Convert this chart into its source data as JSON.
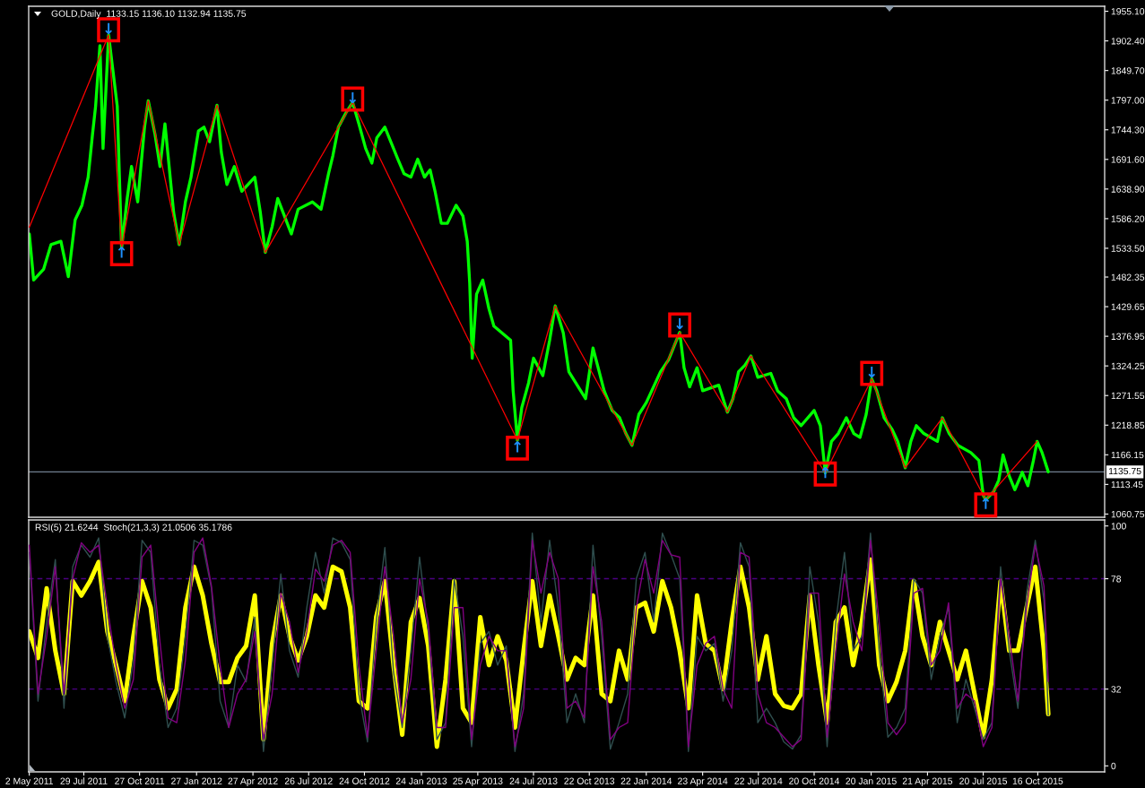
{
  "chart_data": [
    {
      "type": "line",
      "title": "GOLD,Daily  1133.15 1136.10 1132.94 1135.75",
      "xlim": [
        "2011-05-01",
        "2016-02-01"
      ],
      "ylim": [
        1055,
        1964
      ],
      "yticks": [
        {
          "value": 1955.1,
          "label": "1955.10"
        },
        {
          "value": 1902.4,
          "label": "1902.40"
        },
        {
          "value": 1849.7,
          "label": "1849.70"
        },
        {
          "value": 1797.0,
          "label": "1797.00"
        },
        {
          "value": 1744.3,
          "label": "1744.30"
        },
        {
          "value": 1691.6,
          "label": "1691.60"
        },
        {
          "value": 1638.9,
          "label": "1638.90"
        },
        {
          "value": 1586.2,
          "label": "1586.20"
        },
        {
          "value": 1533.5,
          "label": "1533.50"
        },
        1482.35,
        1429.65,
        1376.95,
        1324.25,
        1271.55,
        1218.85,
        1166.15,
        1113.45,
        1060.75
      ],
      "tick_labels": "y",
      "series": [
        {
          "color": "#00ff00",
          "x": [
            "2011-05-02",
            "2011-05-09",
            "2011-05-25",
            "2011-06-06",
            "2011-06-22",
            "2011-07-04",
            "2011-07-15",
            "2011-07-26",
            "2011-08-05",
            "2011-08-12",
            "2011-08-17",
            "2011-08-24",
            "2011-08-29",
            "2011-09-07",
            "2011-09-21",
            "2011-09-28",
            "2011-10-07",
            "2011-10-14",
            "2011-10-24",
            "2011-11-04",
            "2011-11-10",
            "2011-11-21",
            "2011-11-29",
            "2011-12-07",
            "2011-12-21",
            "2011-12-30",
            "2012-01-09",
            "2012-01-18",
            "2012-01-30",
            "2012-02-08",
            "2012-02-17",
            "2012-02-29",
            "2012-03-07",
            "2012-03-16",
            "2012-03-28",
            "2012-04-09",
            "2012-04-30",
            "2012-05-09",
            "2012-05-17",
            "2012-05-28",
            "2012-06-06",
            "2012-06-28",
            "2012-07-09",
            "2012-08-01",
            "2012-08-15",
            "2012-08-27",
            "2012-09-03",
            "2012-09-12",
            "2012-09-24",
            "2012-10-05",
            "2012-10-15",
            "2012-10-26",
            "2012-11-05",
            "2012-11-13",
            "2012-11-26",
            "2012-12-17",
            "2012-12-27",
            "2013-01-07",
            "2013-01-18",
            "2013-01-29",
            "2013-02-07",
            "2013-02-15",
            "2013-02-25",
            "2013-03-07",
            "2013-03-21",
            "2013-04-01",
            "2013-04-08",
            "2013-04-12",
            "2013-04-16",
            "2013-04-23",
            "2013-05-03",
            "2013-05-13",
            "2013-05-21",
            "2013-06-17",
            "2013-06-21",
            "2013-06-28",
            "2013-07-05",
            "2013-07-16",
            "2013-07-24",
            "2013-08-08",
            "2013-08-19",
            "2013-08-28",
            "2013-09-10",
            "2013-09-19",
            "2013-10-16",
            "2013-10-28",
            "2013-11-07",
            "2013-11-15",
            "2013-11-28",
            "2013-12-10",
            "2013-12-20",
            "2013-12-30",
            "2014-01-10",
            "2014-01-22",
            "2014-02-14",
            "2014-02-27",
            "2014-03-17",
            "2014-03-24",
            "2014-04-02",
            "2014-04-14",
            "2014-04-23",
            "2014-05-19",
            "2014-06-02",
            "2014-06-11",
            "2014-06-20",
            "2014-06-30",
            "2014-07-10",
            "2014-07-21",
            "2014-08-11",
            "2014-08-22",
            "2014-09-05",
            "2014-09-17",
            "2014-09-29",
            "2014-10-20",
            "2014-10-30",
            "2014-11-07",
            "2014-11-17",
            "2014-11-28",
            "2014-12-11",
            "2014-12-23",
            "2015-01-02",
            "2015-01-12",
            "2015-01-21",
            "2015-01-29",
            "2015-02-10",
            "2015-02-23",
            "2015-03-04",
            "2015-03-16",
            "2015-03-25",
            "2015-04-03",
            "2015-04-15",
            "2015-05-07",
            "2015-05-15",
            "2015-05-26",
            "2015-06-09",
            "2015-06-30",
            "2015-07-13",
            "2015-07-20",
            "2015-07-24",
            "2015-08-06",
            "2015-08-14",
            "2015-08-21",
            "2015-08-31",
            "2015-09-09",
            "2015-09-21",
            "2015-09-30",
            "2015-10-09",
            "2015-10-15",
            "2015-10-23",
            "2015-11-02"
          ],
          "values": [
            1559,
            1477,
            1496,
            1540,
            1546,
            1483,
            1584,
            1610,
            1660,
            1736,
            1786,
            1894,
            1711,
            1913,
            1786,
            1534,
            1622,
            1679,
            1616,
            1749,
            1796,
            1736,
            1679,
            1755,
            1597,
            1540,
            1616,
            1660,
            1742,
            1749,
            1723,
            1788,
            1704,
            1647,
            1679,
            1635,
            1660,
            1597,
            1526,
            1572,
            1622,
            1559,
            1603,
            1616,
            1603,
            1666,
            1698,
            1749,
            1774,
            1793,
            1755,
            1711,
            1685,
            1730,
            1749,
            1692,
            1666,
            1660,
            1692,
            1660,
            1673,
            1635,
            1578,
            1578,
            1610,
            1591,
            1546,
            1471,
            1338,
            1452,
            1477,
            1426,
            1395,
            1370,
            1281,
            1192,
            1250,
            1294,
            1338,
            1307,
            1370,
            1431,
            1383,
            1314,
            1266,
            1356,
            1314,
            1280,
            1245,
            1232,
            1204,
            1183,
            1238,
            1259,
            1314,
            1335,
            1384,
            1321,
            1287,
            1321,
            1280,
            1290,
            1242,
            1266,
            1314,
            1325,
            1342,
            1304,
            1311,
            1280,
            1266,
            1232,
            1218,
            1245,
            1218,
            1134,
            1190,
            1204,
            1232,
            1204,
            1197,
            1238,
            1301,
            1280,
            1232,
            1211,
            1190,
            1143,
            1190,
            1218,
            1204,
            1190,
            1232,
            1204,
            1183,
            1170,
            1156,
            1094,
            1086,
            1101,
            1121,
            1166,
            1128,
            1104,
            1135,
            1111,
            1156,
            1190,
            1170,
            1135.75
          ]
        },
        {
          "color": "#ff0000",
          "x": [
            "2011-05-02",
            "2011-09-07",
            "2011-09-28",
            "2011-11-10",
            "2011-12-30",
            "2012-02-29",
            "2012-05-17",
            "2012-10-05",
            "2013-06-28",
            "2013-08-28",
            "2013-12-30",
            "2014-03-17",
            "2014-06-02",
            "2014-07-10",
            "2014-11-07",
            "2015-01-21",
            "2015-03-16",
            "2015-05-15",
            "2015-07-24",
            "2015-10-15"
          ],
          "values": [
            1571,
            1913,
            1534,
            1796,
            1540,
            1788,
            1526,
            1793,
            1192,
            1431,
            1183,
            1384,
            1242,
            1342,
            1134,
            1301,
            1143,
            1232,
            1086,
            1190
          ]
        }
      ],
      "ref_lines": [
        {
          "axis": "y",
          "value": 1135.75,
          "label": "1135.75",
          "color": "#708090"
        }
      ],
      "annotations": [
        {
          "text": "↓",
          "x": "2011-09-07",
          "y": 1922
        },
        {
          "text": "↑",
          "x": "2011-09-28",
          "y": 1524
        },
        {
          "text": "↓",
          "x": "2012-10-05",
          "y": 1799
        },
        {
          "text": "↑",
          "x": "2013-06-28",
          "y": 1178
        },
        {
          "text": "↓",
          "x": "2014-03-17",
          "y": 1397
        },
        {
          "text": "↑",
          "x": "2014-11-07",
          "y": 1132
        },
        {
          "text": "↓",
          "x": "2015-01-21",
          "y": 1311
        },
        {
          "text": "↑",
          "x": "2015-07-24",
          "y": 1077
        }
      ]
    },
    {
      "type": "line",
      "title": "RSI(5) 21.6244  Stoch(21,3,3) 21.0506 35.1786",
      "x": [
        "2011-05-02",
        "2011-05-16",
        "2011-05-30",
        "2011-06-13",
        "2011-06-27",
        "2011-07-11",
        "2011-07-25",
        "2011-08-08",
        "2011-08-22",
        "2011-09-05",
        "2011-09-19",
        "2011-10-03",
        "2011-10-17",
        "2011-10-31",
        "2011-11-14",
        "2011-11-28",
        "2011-12-12",
        "2011-12-26",
        "2012-01-09",
        "2012-01-23",
        "2012-02-06",
        "2012-02-20",
        "2012-03-05",
        "2012-03-19",
        "2012-04-02",
        "2012-04-16",
        "2012-04-30",
        "2012-05-14",
        "2012-05-28",
        "2012-06-11",
        "2012-06-25",
        "2012-07-09",
        "2012-07-23",
        "2012-08-06",
        "2012-08-20",
        "2012-09-03",
        "2012-09-17",
        "2012-10-01",
        "2012-10-15",
        "2012-10-29",
        "2012-11-12",
        "2012-11-26",
        "2012-12-10",
        "2012-12-24",
        "2013-01-07",
        "2013-01-21",
        "2013-02-04",
        "2013-02-18",
        "2013-03-04",
        "2013-03-18",
        "2013-04-01",
        "2013-04-15",
        "2013-04-29",
        "2013-05-13",
        "2013-05-27",
        "2013-06-10",
        "2013-06-24",
        "2013-07-08",
        "2013-07-22",
        "2013-08-05",
        "2013-08-19",
        "2013-09-02",
        "2013-09-16",
        "2013-09-30",
        "2013-10-14",
        "2013-10-28",
        "2013-11-11",
        "2013-11-25",
        "2013-12-09",
        "2013-12-23",
        "2014-01-06",
        "2014-01-20",
        "2014-02-03",
        "2014-02-17",
        "2014-03-03",
        "2014-03-17",
        "2014-03-31",
        "2014-04-14",
        "2014-04-28",
        "2014-05-12",
        "2014-05-26",
        "2014-06-09",
        "2014-06-23",
        "2014-07-07",
        "2014-07-21",
        "2014-08-04",
        "2014-08-18",
        "2014-09-01",
        "2014-09-15",
        "2014-09-29",
        "2014-10-13",
        "2014-10-27",
        "2014-11-10",
        "2014-11-24",
        "2014-12-08",
        "2014-12-22",
        "2015-01-05",
        "2015-01-19",
        "2015-02-02",
        "2015-02-16",
        "2015-03-02",
        "2015-03-16",
        "2015-03-30",
        "2015-04-13",
        "2015-04-27",
        "2015-05-11",
        "2015-05-25",
        "2015-06-08",
        "2015-06-22",
        "2015-07-06",
        "2015-07-20",
        "2015-08-03",
        "2015-08-17",
        "2015-08-31",
        "2015-09-14",
        "2015-09-28",
        "2015-10-12",
        "2015-10-26",
        "2015-11-02"
      ],
      "xlim": [
        "2011-05-01",
        "2016-02-01"
      ],
      "xticks": [
        {
          "value": "2011-05-02",
          "label": "2 May 2011"
        },
        {
          "value": "2011-07-29",
          "label": "29 Jul 2011"
        },
        {
          "value": "2011-10-27",
          "label": "27 Oct 2011"
        },
        {
          "value": "2012-01-27",
          "label": "27 Jan 2012"
        },
        {
          "value": "2012-04-27",
          "label": "27 Apr 2012"
        },
        {
          "value": "2012-07-26",
          "label": "26 Jul 2012"
        },
        {
          "value": "2012-10-24",
          "label": "24 Oct 2012"
        },
        {
          "value": "2013-01-24",
          "label": "24 Jan 2013"
        },
        {
          "value": "2013-04-25",
          "label": "25 Apr 2013"
        },
        {
          "value": "2013-07-24",
          "label": "24 Jul 2013"
        },
        {
          "value": "2013-10-22",
          "label": "22 Oct 2013"
        },
        {
          "value": "2014-01-22",
          "label": "22 Jan 2014"
        },
        {
          "value": "2014-04-23",
          "label": "23 Apr 2014"
        },
        {
          "value": "2014-07-22",
          "label": "22 Jul 2014"
        },
        {
          "value": "2014-10-20",
          "label": "20 Oct 2014"
        },
        {
          "value": "2015-01-20",
          "label": "20 Jan 2015"
        },
        {
          "value": "2015-04-21",
          "label": "21 Apr 2015"
        },
        {
          "value": "2015-07-20",
          "label": "20 Jul 2015"
        },
        {
          "value": "2015-10-16",
          "label": "16 Oct 2015"
        }
      ],
      "ylim": [
        -2.5,
        102.5
      ],
      "yticks": [
        0,
        32,
        78,
        100
      ],
      "series": [
        {
          "color": "#ffff00",
          "values": [
            56,
            45,
            74,
            48,
            30,
            77,
            71,
            77,
            85,
            56,
            42,
            27,
            54,
            77,
            66,
            36,
            24,
            32,
            66,
            83,
            71,
            51,
            35,
            35,
            45,
            50,
            71,
            11,
            51,
            71,
            54,
            44,
            54,
            71,
            66,
            83,
            81,
            66,
            27,
            24,
            62,
            77,
            42,
            13,
            60,
            70,
            50,
            8,
            36,
            77,
            24,
            18,
            62,
            42,
            54,
            44,
            16,
            48,
            77,
            50,
            71,
            54,
            36,
            45,
            42,
            71,
            30,
            27,
            48,
            36,
            66,
            68,
            56,
            77,
            66,
            48,
            24,
            71,
            51,
            48,
            32,
            60,
            83,
            66,
            36,
            54,
            30,
            25,
            24,
            30,
            71,
            42,
            18,
            60,
            66,
            42,
            60,
            86,
            42,
            27,
            35,
            48,
            77,
            54,
            42,
            60,
            48,
            36,
            48,
            30,
            12,
            36,
            77,
            48,
            48,
            66,
            83,
            48,
            21.6
          ]
        },
        {
          "color": "#2f4f4f",
          "values": [
            89,
            27,
            60,
            86,
            24,
            83,
            92,
            87,
            95,
            54,
            35,
            20,
            44,
            94,
            89,
            42,
            16,
            24,
            54,
            94,
            92,
            74,
            27,
            16,
            42,
            35,
            62,
            6,
            42,
            80,
            48,
            37,
            66,
            89,
            72,
            95,
            93,
            86,
            30,
            10,
            60,
            91,
            39,
            16,
            48,
            87,
            56,
            11,
            18,
            78,
            54,
            8,
            51,
            56,
            42,
            50,
            6,
            30,
            97,
            60,
            94,
            66,
            18,
            30,
            18,
            92,
            54,
            7,
            18,
            30,
            78,
            89,
            60,
            97,
            88,
            78,
            6,
            54,
            48,
            51,
            27,
            48,
            93,
            83,
            18,
            24,
            18,
            10,
            7,
            13,
            83,
            60,
            8,
            60,
            89,
            48,
            54,
            97,
            48,
            12,
            16,
            24,
            78,
            72,
            36,
            54,
            66,
            18,
            36,
            24,
            11,
            18,
            83,
            48,
            24,
            72,
            94,
            69,
            21.1
          ]
        },
        {
          "color": "#800080",
          "values": [
            92,
            30,
            54,
            83,
            30,
            78,
            93,
            89,
            92,
            66,
            42,
            24,
            36,
            87,
            92,
            54,
            20,
            18,
            44,
            89,
            95,
            75,
            42,
            16,
            30,
            36,
            56,
            11,
            30,
            72,
            60,
            39,
            56,
            82,
            77,
            92,
            94,
            89,
            42,
            12,
            48,
            83,
            54,
            18,
            36,
            78,
            60,
            16,
            16,
            66,
            66,
            11,
            42,
            54,
            48,
            48,
            8,
            24,
            94,
            72,
            89,
            78,
            24,
            27,
            20,
            83,
            60,
            11,
            16,
            18,
            66,
            86,
            72,
            94,
            88,
            87,
            8,
            42,
            51,
            54,
            32,
            24,
            89,
            87,
            30,
            18,
            16,
            12,
            8,
            11,
            72,
            72,
            12,
            48,
            80,
            60,
            48,
            94,
            60,
            18,
            13,
            18,
            72,
            74,
            42,
            48,
            68,
            24,
            30,
            27,
            8,
            16,
            78,
            54,
            27,
            66,
            92,
            75,
            35.2
          ]
        }
      ],
      "ref_lines": [
        {
          "axis": "y",
          "value": 78,
          "color": "#4b0082",
          "line_style": "dashed"
        },
        {
          "axis": "y",
          "value": 32,
          "color": "#4b0082",
          "line_style": "dashed"
        }
      ]
    }
  ]
}
